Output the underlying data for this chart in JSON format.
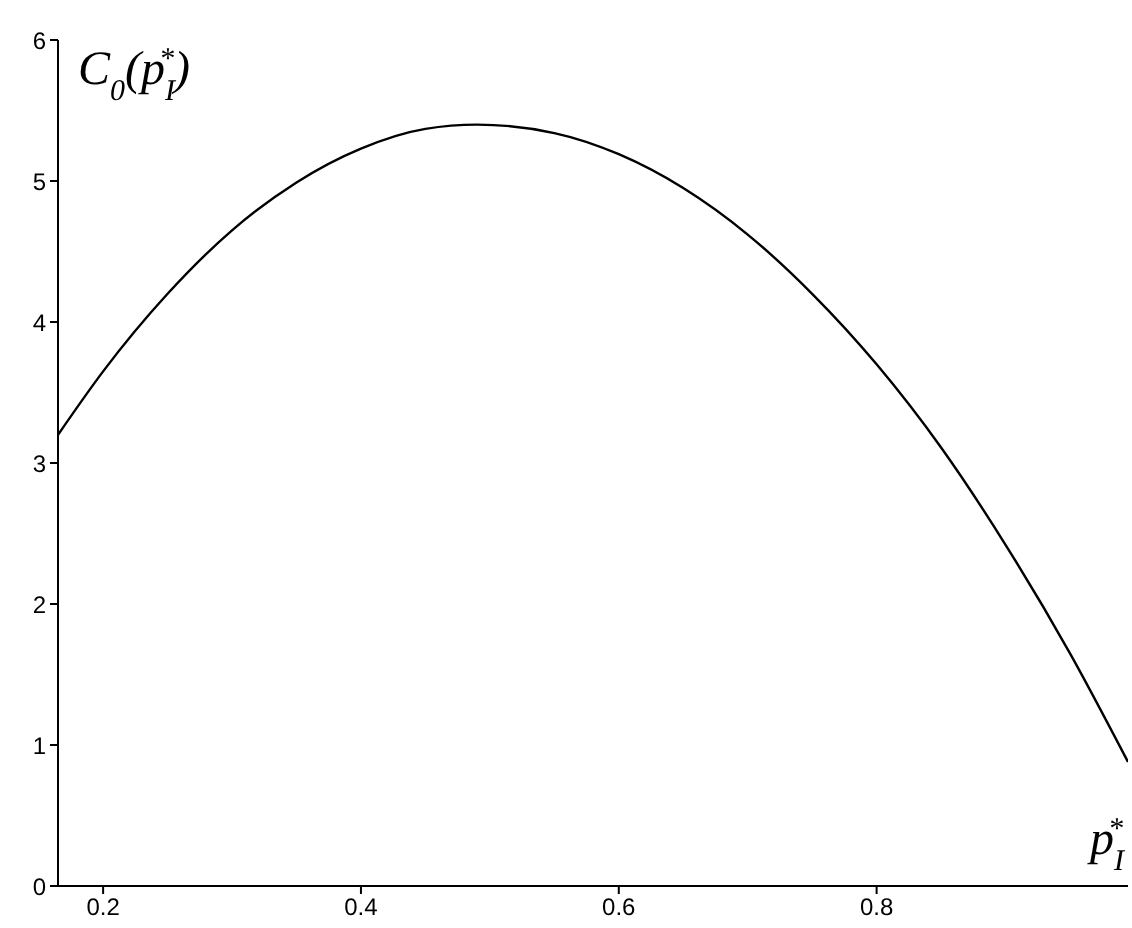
{
  "chart_data": {
    "type": "line",
    "xlabel": "p$_{I}$$^{*}$",
    "ylabel": "C$_{0}$(p$_{I}$$^{*}$)",
    "x": [
      0.165,
      0.2,
      0.25,
      0.3,
      0.35,
      0.4,
      0.45,
      0.49,
      0.55,
      0.6,
      0.65,
      0.7,
      0.75,
      0.8,
      0.85,
      0.9,
      0.95,
      0.995
    ],
    "series": [
      {
        "color": "#000000",
        "values": [
          3.2,
          3.65,
          4.2,
          4.65,
          4.99,
          5.23,
          5.37,
          5.4,
          5.34,
          5.19,
          4.95,
          4.62,
          4.2,
          3.7,
          3.11,
          2.42,
          1.65,
          0.88
        ]
      }
    ],
    "xlim": [
      0.165,
      0.995
    ],
    "xticks": [
      0.2,
      0.4,
      0.6,
      0.8
    ],
    "ylim": [
      0,
      6
    ],
    "yticks": [
      0,
      1,
      2,
      3,
      4,
      5,
      6
    ],
    "grid": false,
    "marker": "none",
    "line_style": "solid"
  }
}
